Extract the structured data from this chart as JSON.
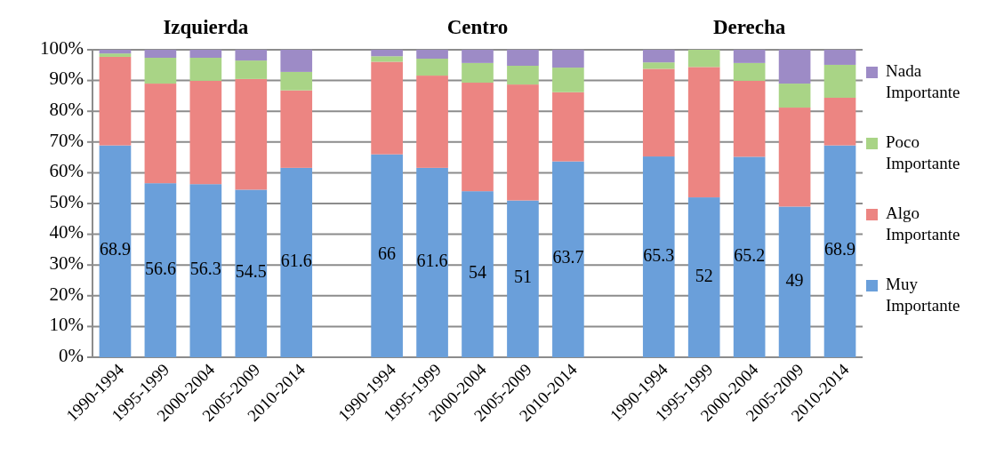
{
  "chart_data": {
    "type": "bar",
    "stacked": true,
    "categories": [
      "1990-1994",
      "1995-1999",
      "2000-2004",
      "2005-2009",
      "2010-2014",
      null,
      "1990-1994",
      "1995-1999",
      "2000-2004",
      "2005-2009",
      "2010-2014",
      null,
      "1990-1994",
      "1995-1999",
      "2000-2004",
      "2005-2009",
      "2010-2014"
    ],
    "series": [
      {
        "name": "Muy Importante",
        "color": "#6a9fda",
        "values": [
          68.9,
          56.6,
          56.3,
          54.5,
          61.6,
          null,
          66,
          61.6,
          54,
          51,
          63.7,
          null,
          65.3,
          52,
          65.2,
          49,
          68.9
        ],
        "value_labels": [
          "68.9",
          "56.6",
          "56.3",
          "54.5",
          "61.6",
          null,
          "66",
          "61.6",
          "54",
          "51",
          "63.7",
          null,
          "65.3",
          "52",
          "65.2",
          "49",
          "68.9"
        ]
      },
      {
        "name": "Algo Importante",
        "color": "#ec8582",
        "values": [
          28.8,
          32.4,
          33.6,
          36.0,
          25.2,
          null,
          30.1,
          30.0,
          35.3,
          37.7,
          22.5,
          null,
          28.5,
          42.4,
          24.7,
          32.2,
          15.5
        ]
      },
      {
        "name": "Poco Importante",
        "color": "#a9d486",
        "values": [
          1.1,
          8.4,
          7.5,
          6.0,
          6.0,
          null,
          1.8,
          5.5,
          6.4,
          6.1,
          8.0,
          null,
          2.1,
          5.6,
          5.8,
          7.8,
          10.7
        ]
      },
      {
        "name": "Nada Importante",
        "color": "#9d8bc6",
        "values": [
          1.2,
          2.6,
          2.6,
          3.5,
          7.2,
          null,
          2.1,
          2.9,
          4.3,
          5.2,
          5.8,
          null,
          4.1,
          0,
          4.3,
          11.0,
          4.9
        ]
      }
    ],
    "ylim": [
      0,
      100
    ],
    "yticks": [
      {
        "value": 0,
        "label": "0%"
      },
      {
        "value": 10,
        "label": "10%"
      },
      {
        "value": 20,
        "label": "20%"
      },
      {
        "value": 30,
        "label": "30%"
      },
      {
        "value": 40,
        "label": "40%"
      },
      {
        "value": 50,
        "label": "50%"
      },
      {
        "value": 60,
        "label": "60%"
      },
      {
        "value": 70,
        "label": "70%"
      },
      {
        "value": 80,
        "label": "80%"
      },
      {
        "value": 90,
        "label": "90%"
      },
      {
        "value": 100,
        "label": "100%"
      }
    ],
    "grid": "y",
    "legend": "right",
    "annotations": [
      "Izquierda",
      "Centro",
      "Derecha"
    ]
  }
}
